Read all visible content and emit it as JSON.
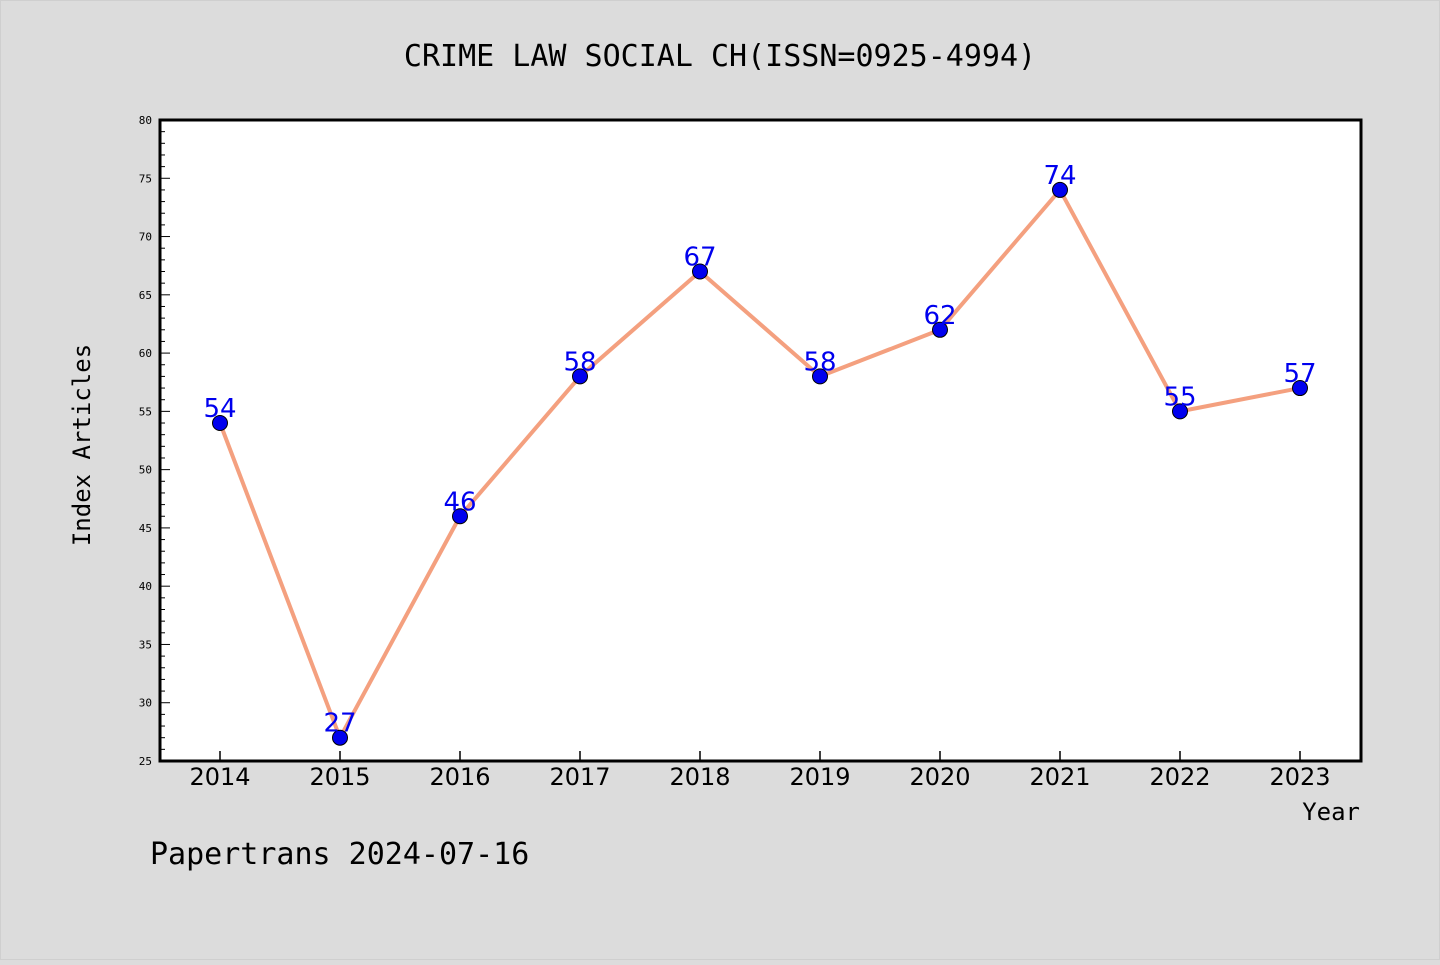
{
  "chart_data": {
    "type": "line",
    "title": "CRIME LAW SOCIAL CH(ISSN=0925-4994)",
    "xlabel": "Year",
    "ylabel": "Index Articles",
    "categories": [
      "2014",
      "2015",
      "2016",
      "2017",
      "2018",
      "2019",
      "2020",
      "2021",
      "2022",
      "2023"
    ],
    "series": [
      {
        "values": [
          54,
          27,
          46,
          58,
          67,
          58,
          62,
          74,
          55,
          57
        ]
      }
    ],
    "ylim": [
      25,
      80
    ],
    "yticks": [
      25,
      30,
      35,
      40,
      45,
      50,
      55,
      60,
      65,
      70,
      75,
      80
    ],
    "grid": false,
    "data_labels": true,
    "colors": {
      "line": "#f4a07f",
      "marker": "#0000ee",
      "label": "#0000ee",
      "background": "#dcdcdc",
      "plot_background": "#ffffff"
    }
  },
  "footer": "Papertrans 2024-07-16"
}
